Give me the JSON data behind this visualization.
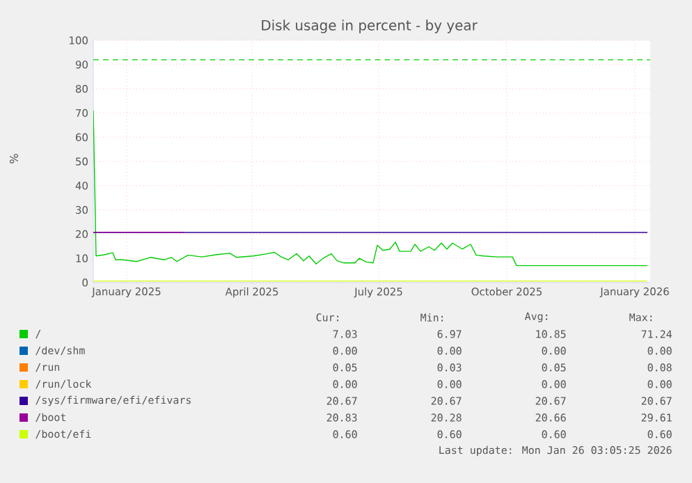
{
  "chart_data": {
    "type": "line",
    "title": "Disk usage in percent - by year",
    "ylabel": "%",
    "xlim": [
      "2024-12-22",
      "2026-01-26"
    ],
    "xticks": [
      {
        "value": "2025-01-15",
        "label": "January 2025"
      },
      {
        "value": "2025-04-15",
        "label": "April 2025"
      },
      {
        "value": "2025-07-15",
        "label": "July 2025"
      },
      {
        "value": "2025-10-15",
        "label": "October 2025"
      },
      {
        "value": "2026-01-15",
        "label": "January 2026"
      }
    ],
    "ylim": [
      0,
      100
    ],
    "yticks": [
      0,
      10,
      20,
      30,
      40,
      50,
      60,
      70,
      80,
      90,
      100
    ],
    "grid": true,
    "legend": "bottom",
    "series": [
      {
        "name": "/",
        "color": "#00cc00",
        "x": [
          "2024-12-22",
          "2024-12-24",
          "2024-12-30",
          "2025-01-05",
          "2025-01-07",
          "2025-01-12",
          "2025-01-22",
          "2025-02-01",
          "2025-02-11",
          "2025-02-16",
          "2025-02-20",
          "2025-02-28",
          "2025-03-10",
          "2025-03-20",
          "2025-03-30",
          "2025-04-04",
          "2025-04-16",
          "2025-04-26",
          "2025-05-01",
          "2025-05-06",
          "2025-05-11",
          "2025-05-17",
          "2025-05-22",
          "2025-05-26",
          "2025-05-31",
          "2025-06-05",
          "2025-06-11",
          "2025-06-15",
          "2025-06-20",
          "2025-06-28",
          "2025-07-01",
          "2025-07-06",
          "2025-07-11",
          "2025-07-14",
          "2025-07-18",
          "2025-07-23",
          "2025-07-27",
          "2025-07-30",
          "2025-08-07",
          "2025-08-10",
          "2025-08-14",
          "2025-08-20",
          "2025-08-24",
          "2025-08-29",
          "2025-09-02",
          "2025-09-06",
          "2025-09-13",
          "2025-09-19",
          "2025-09-23",
          "2025-09-28",
          "2025-10-08",
          "2025-10-19",
          "2025-10-22",
          "2026-01-24"
        ],
        "values": [
          71,
          11.0,
          11.5,
          12.3,
          9.4,
          9.4,
          8.7,
          10.4,
          9.4,
          10.4,
          8.7,
          11.3,
          10.6,
          11.5,
          12.1,
          10.4,
          11.0,
          11.9,
          12.5,
          10.6,
          9.4,
          11.9,
          9.0,
          11.0,
          7.7,
          10.0,
          11.9,
          9.0,
          8.1,
          8.1,
          10.0,
          8.5,
          8.1,
          15.4,
          13.3,
          13.8,
          16.7,
          12.9,
          12.9,
          15.8,
          12.9,
          14.8,
          13.3,
          16.3,
          13.8,
          16.3,
          13.8,
          15.8,
          11.3,
          11.0,
          10.6,
          10.6,
          7.0,
          7.0
        ]
      },
      {
        "name": "/dev/shm",
        "color": "#0066b3"
      },
      {
        "name": "/run",
        "color": "#ff8000"
      },
      {
        "name": "/run/lock",
        "color": "#ffcc00"
      },
      {
        "name": "/sys/firmware/efi/efivars",
        "color": "#330099",
        "x": [
          "2024-12-22",
          "2026-01-24"
        ],
        "values": [
          20.7,
          20.7
        ]
      },
      {
        "name": "/boot",
        "color": "#990099",
        "x": [
          "2024-12-22",
          "2025-02-25"
        ],
        "values": [
          20.8,
          20.8
        ]
      },
      {
        "name": "/boot/efi",
        "color": "#ccff00",
        "x": [
          "2024-12-22",
          "2026-01-24"
        ],
        "values": [
          0.6,
          0.6
        ]
      }
    ],
    "ref_lines": [
      {
        "axis": "y",
        "value": 92,
        "color": "#00cc00",
        "line_style": "dashed"
      }
    ],
    "annotations": [
      "Cur:",
      "Min:",
      "Avg:",
      "Max:",
      "7.03",
      "6.97",
      "10.85",
      "71.24",
      "0.00",
      "0.00",
      "0.00",
      "0.00",
      "0.05",
      "0.03",
      "0.05",
      "0.08",
      "0.00",
      "0.00",
      "0.00",
      "0.00",
      "20.67",
      "20.67",
      "20.67",
      "20.67",
      "20.83",
      "20.28",
      "20.66",
      "29.61",
      "0.60",
      "0.60",
      "0.60",
      "0.60",
      "Last update: Mon Jan 26 03:05:25 2026"
    ]
  }
}
